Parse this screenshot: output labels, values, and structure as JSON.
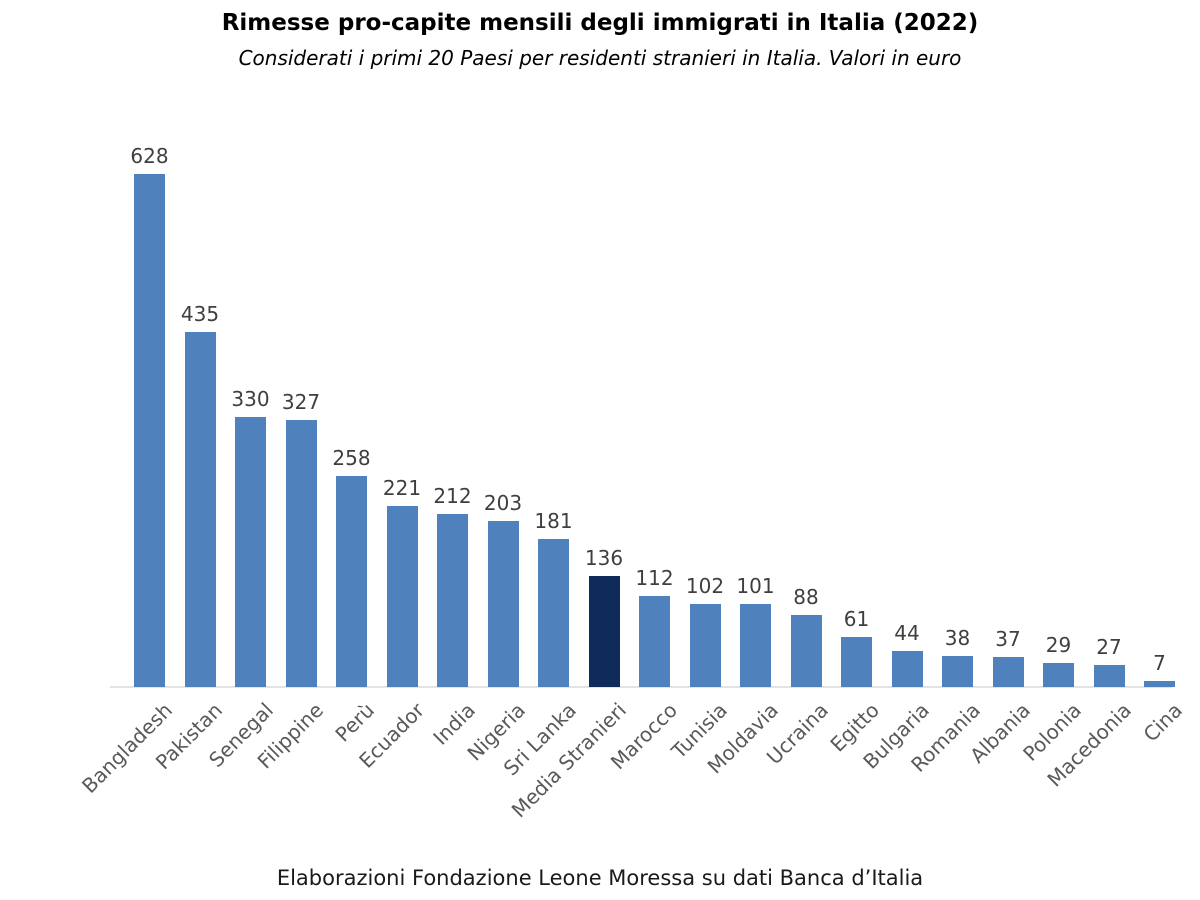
{
  "chart_data": {
    "type": "bar",
    "title": "Rimesse pro-capite mensili degli immigrati in Italia (2022)",
    "subtitle": "Considerati i primi 20 Paesi per residenti stranieri in Italia. Valori in euro",
    "source": "Elaborazioni Fondazione Leone Moressa su dati Banca d’Italia",
    "categories": [
      "Bangladesh",
      "Pakistan",
      "Senegal",
      "Filippine",
      "Perù",
      "Ecuador",
      "India",
      "Nigeria",
      "Sri Lanka",
      "Media Stranieri",
      "Marocco",
      "Tunisia",
      "Moldavia",
      "Ucraina",
      "Egitto",
      "Bulgaria",
      "Romania",
      "Albania",
      "Polonia",
      "Macedonia",
      "Cina"
    ],
    "values": [
      628,
      435,
      330,
      327,
      258,
      221,
      212,
      203,
      181,
      136,
      112,
      102,
      101,
      88,
      61,
      44,
      38,
      37,
      29,
      27,
      7
    ],
    "highlight_category": "Media Stranieri",
    "xlabel": "",
    "ylabel": "",
    "ylim": [
      0,
      700
    ],
    "grid": false,
    "legend": false,
    "data_labels": true,
    "tick_rotation_deg": 45,
    "colors": {
      "bar": "#4f81bd",
      "highlight_bar": "#0f2b5b",
      "value_label": "#3f3f3f",
      "tick_label": "#595959",
      "axis_line": "#e3e3e3",
      "background": "#ffffff"
    }
  }
}
